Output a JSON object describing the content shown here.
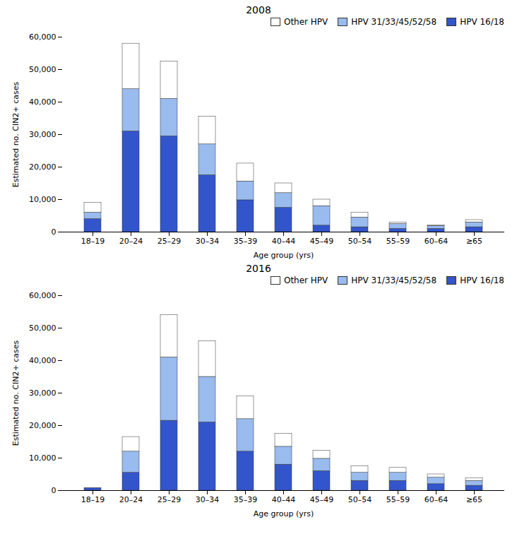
{
  "chart_data": [
    {
      "type": "bar",
      "title": "2008",
      "stacked": true,
      "categories": [
        "18–19",
        "20–24",
        "25–29",
        "30–34",
        "35–39",
        "40–44",
        "45–49",
        "50–54",
        "55–59",
        "60–64",
        "≥65"
      ],
      "series": [
        {
          "name": "HPV 16/18",
          "color": "#3355cc",
          "values": [
            4000,
            31000,
            29500,
            17500,
            9800,
            7500,
            2000,
            1500,
            1000,
            1000,
            1500
          ]
        },
        {
          "name": "HPV 31/33/45/52/58",
          "color": "#99bbee",
          "values": [
            2000,
            13000,
            11500,
            9500,
            5800,
            4500,
            6000,
            3000,
            1500,
            900,
            1500
          ]
        },
        {
          "name": "Other HPV",
          "color": "#ffffff",
          "values": [
            3000,
            14000,
            11500,
            8500,
            5500,
            3000,
            2000,
            1500,
            500,
            200,
            700
          ]
        }
      ],
      "xlabel": "Age group (yrs)",
      "ylabel": "Estimated no. CIN2+ cases",
      "ylim": [
        0,
        60000
      ],
      "yticks": [
        0,
        {
          "value": 10000,
          "label": "10,000"
        },
        {
          "value": 20000,
          "label": "20,000"
        },
        {
          "value": 30000,
          "label": "30,000"
        },
        {
          "value": 40000,
          "label": "40,000"
        },
        {
          "value": 50000,
          "label": "50,000"
        },
        {
          "value": 60000,
          "label": "60,000"
        }
      ],
      "grid": false,
      "legend": "upper right"
    },
    {
      "type": "bar",
      "title": "2016",
      "stacked": true,
      "categories": [
        "18–19",
        "20–24",
        "25–29",
        "30–34",
        "35–39",
        "40–44",
        "45–49",
        "50–54",
        "55–59",
        "60–64",
        "≥65"
      ],
      "series": [
        {
          "name": "HPV 16/18",
          "color": "#3355cc",
          "values": [
            800,
            5500,
            21500,
            21000,
            12000,
            8000,
            6000,
            3000,
            3000,
            2000,
            1500
          ]
        },
        {
          "name": "HPV 31/33/45/52/58",
          "color": "#99bbee",
          "values": [
            0,
            6500,
            19500,
            14000,
            10000,
            5500,
            3800,
            2500,
            2500,
            2000,
            1500
          ]
        },
        {
          "name": "Other HPV",
          "color": "#ffffff",
          "values": [
            0,
            4500,
            13000,
            11000,
            7000,
            4000,
            2500,
            2000,
            1500,
            1000,
            800
          ]
        }
      ],
      "xlabel": "Age group (yrs)",
      "ylabel": "Estimated no. CIN2+ cases",
      "ylim": [
        0,
        60000
      ],
      "yticks": [
        0,
        {
          "value": 10000,
          "label": "10,000"
        },
        {
          "value": 20000,
          "label": "20,000"
        },
        {
          "value": 30000,
          "label": "30,000"
        },
        {
          "value": 40000,
          "label": "40,000"
        },
        {
          "value": 50000,
          "label": "50,000"
        },
        {
          "value": 60000,
          "label": "60,000"
        }
      ],
      "grid": false,
      "legend": "upper right"
    }
  ]
}
